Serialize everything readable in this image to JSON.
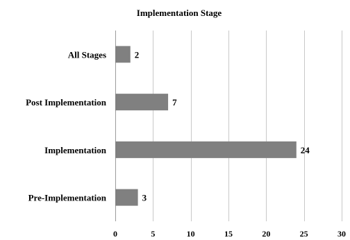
{
  "chart_data": {
    "type": "bar",
    "orientation": "horizontal",
    "title": "Implementation Stage",
    "categories": [
      "All Stages",
      "Post Implementation",
      "Implementation",
      "Pre-Implementation"
    ],
    "values": [
      2,
      7,
      24,
      3
    ],
    "data_labels": [
      "2",
      "7",
      "24",
      "3"
    ],
    "xlim": [
      0,
      30
    ],
    "xticks": [
      0,
      5,
      10,
      15,
      20,
      25,
      30
    ],
    "xtick_labels": [
      "0",
      "5",
      "10",
      "15",
      "20",
      "25",
      "30"
    ],
    "xlabel": "",
    "ylabel": "",
    "grid": "vertical",
    "legend": "none",
    "bar_color": "#808080"
  }
}
